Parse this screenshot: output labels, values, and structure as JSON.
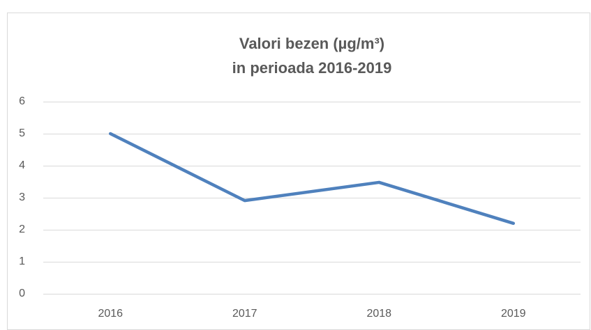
{
  "chart_data": {
    "type": "line",
    "title": [
      "Valori bezen (µg/m³)",
      "in perioada 2016-2019"
    ],
    "categories": [
      "2016",
      "2017",
      "2018",
      "2019"
    ],
    "series": [
      {
        "name": "Valori bezen",
        "color": "#4f81bd",
        "values": [
          5.0,
          2.91,
          3.48,
          2.2
        ]
      }
    ],
    "ylim": [
      0,
      6
    ],
    "yticks": [
      0,
      1,
      2,
      3,
      4,
      5,
      6
    ],
    "grid": true
  }
}
